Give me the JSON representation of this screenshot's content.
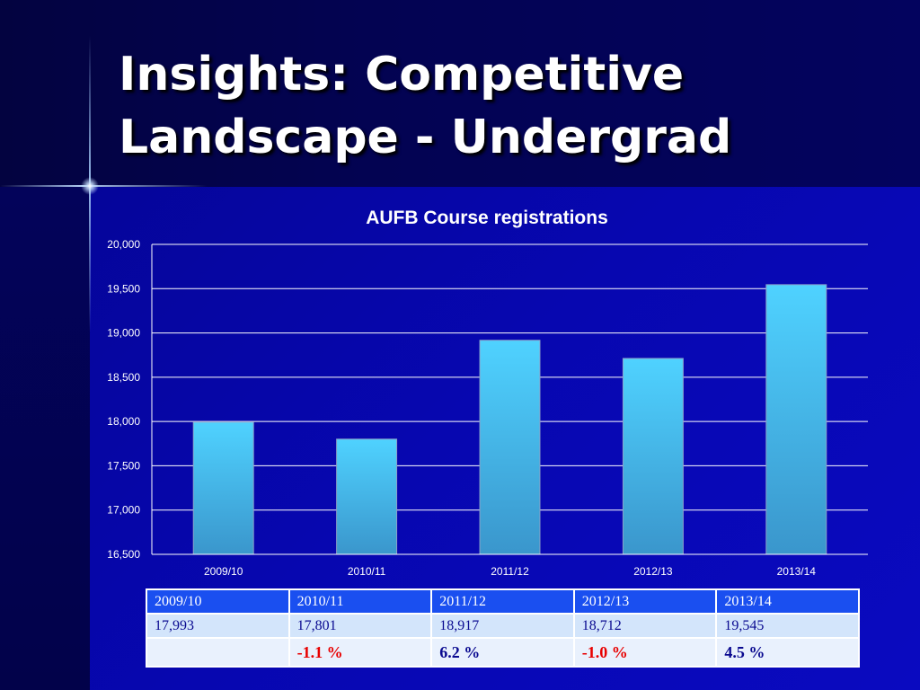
{
  "slide": {
    "title_line1": "Insights: Competitive",
    "title_line2": "Landscape - Undergrad"
  },
  "chart_data": {
    "type": "bar",
    "title": "AUFB Course registrations",
    "categories": [
      "2009/10",
      "2010/11",
      "2011/12",
      "2012/13",
      "2013/14"
    ],
    "values": [
      17993,
      17801,
      18917,
      18712,
      19545
    ],
    "ylim": [
      16500,
      20000
    ],
    "yticks": [
      16500,
      17000,
      17500,
      18000,
      18500,
      19000,
      19500,
      20000
    ],
    "ytick_labels": [
      "16,500",
      "17,000",
      "17,500",
      "18,000",
      "18,500",
      "19,000",
      "19,500",
      "20,000"
    ],
    "grid": true,
    "bar_color_top": "#4fd2ff",
    "bar_color_bottom": "#3a96cc"
  },
  "table": {
    "headers": [
      "2009/10",
      "2010/11",
      "2011/12",
      "2012/13",
      "2013/14"
    ],
    "values": [
      "17,993",
      "17,801",
      "18,917",
      "18,712",
      "19,545"
    ],
    "changes": [
      "",
      "-1.1 %",
      "6.2 %",
      "-1.0 %",
      "4.5 %"
    ],
    "change_colors": [
      "",
      "#e80000",
      "#0a0a90",
      "#e80000",
      "#0a0a90"
    ]
  }
}
